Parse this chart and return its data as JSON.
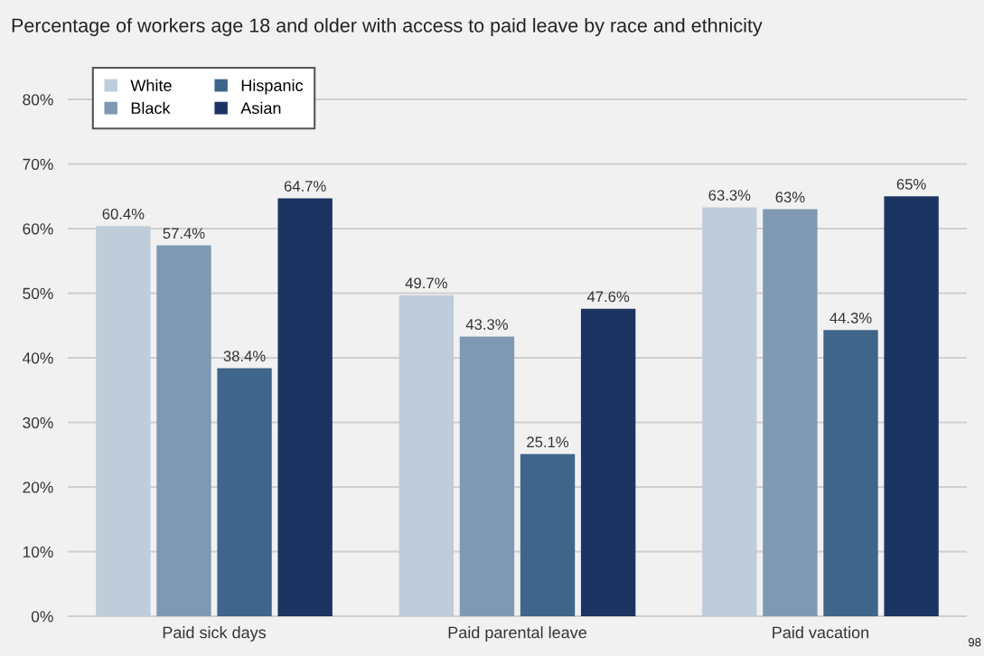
{
  "chart_data": {
    "type": "bar",
    "title": "Percentage of workers age 18 and older with access to paid leave by race and ethnicity",
    "categories": [
      "Paid sick days",
      "Paid parental leave",
      "Paid vacation"
    ],
    "series": [
      {
        "name": "White",
        "color": "#bfccd9",
        "values": [
          60.4,
          49.7,
          63.3
        ],
        "value_labels": [
          "60.4%",
          "49.7%",
          "63.3%"
        ]
      },
      {
        "name": "Black",
        "color": "#7f99b2",
        "values": [
          57.4,
          43.3,
          63
        ],
        "value_labels": [
          "57.4%",
          "43.3%",
          "63%"
        ]
      },
      {
        "name": "Hispanic",
        "color": "#40658a",
        "values": [
          38.4,
          25.1,
          44.3
        ],
        "value_labels": [
          "38.4%",
          "25.1%",
          "44.3%"
        ]
      },
      {
        "name": "Asian",
        "color": "#1c3462",
        "values": [
          64.7,
          47.6,
          65
        ],
        "value_labels": [
          "64.7%",
          "47.6%",
          "65%"
        ]
      }
    ],
    "ylim": [
      0,
      80
    ],
    "yticks": [
      {
        "value": 0,
        "label": "0%"
      },
      {
        "value": 10,
        "label": "10%"
      },
      {
        "value": 20,
        "label": "20%"
      },
      {
        "value": 30,
        "label": "30%"
      },
      {
        "value": 40,
        "label": "40%"
      },
      {
        "value": 50,
        "label": "50%"
      },
      {
        "value": 60,
        "label": "60%"
      },
      {
        "value": 70,
        "label": "70%"
      },
      {
        "value": 80,
        "label": "80%"
      }
    ],
    "grid": "y",
    "legend": "top left",
    "annotations": [
      "98"
    ]
  }
}
